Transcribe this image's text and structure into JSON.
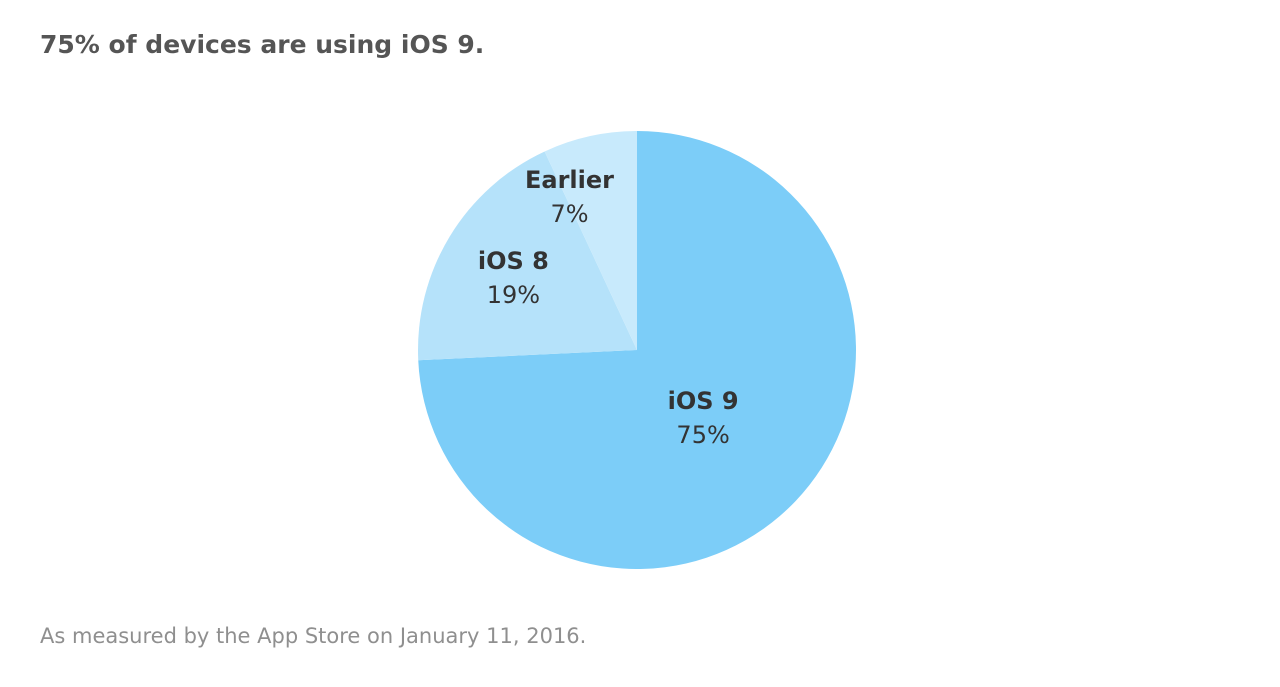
{
  "headline": "75% of devices are using iOS 9.",
  "footnote": "As measured by the App Store on January 11, 2016.",
  "chart_data": {
    "type": "pie",
    "title": "75% of devices are using iOS 9.",
    "slices": [
      {
        "label": "iOS 9",
        "value": 75,
        "value_label": "75%",
        "color": "#7ccdf8"
      },
      {
        "label": "iOS 8",
        "value": 19,
        "value_label": "19%",
        "color": "#b5e2fa"
      },
      {
        "label": "Earlier",
        "value": 7,
        "value_label": "7%",
        "color": "#c8eafc"
      }
    ],
    "start": "12 o'clock",
    "direction": "clockwise",
    "legend": "none",
    "labels": "inside slices"
  }
}
